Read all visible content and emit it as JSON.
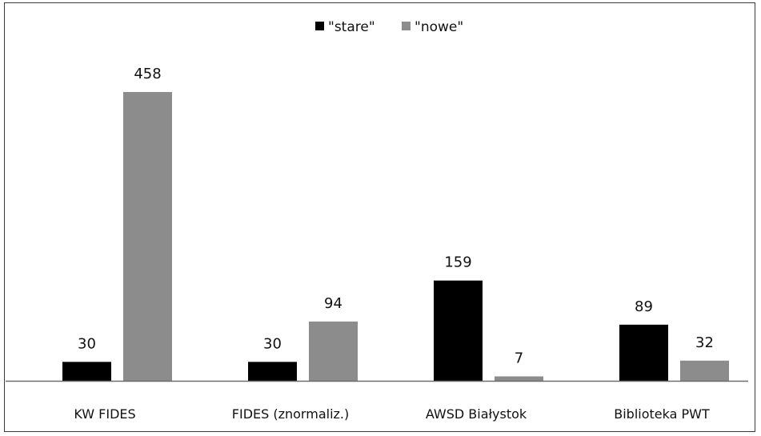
{
  "chart_data": {
    "type": "bar",
    "title": "",
    "xlabel": "",
    "ylabel": "",
    "categories": [
      "KW FIDES",
      "FIDES (znormaliz.)",
      "AWSD Białystok",
      "Biblioteka PWT"
    ],
    "series": [
      {
        "name": "\"stare\"",
        "color": "#000000",
        "values": [
          30,
          30,
          159,
          89
        ]
      },
      {
        "name": "\"nowe\"",
        "color": "#8c8c8c",
        "values": [
          458,
          94,
          7,
          32
        ]
      }
    ],
    "ylim": [
      0,
      500
    ],
    "grid": false,
    "legend_position": "top-center",
    "data_labels": true
  }
}
